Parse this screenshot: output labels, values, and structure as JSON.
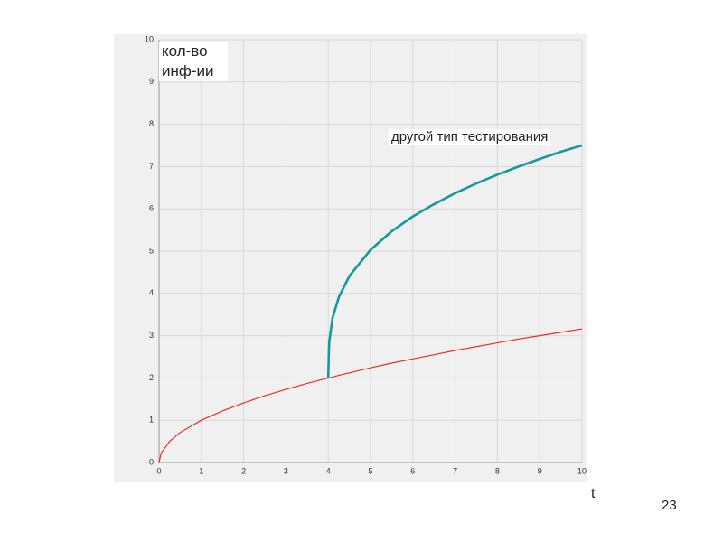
{
  "chart_data": {
    "type": "line",
    "ylabel": "кол-во инф-ии",
    "xlabel": "t",
    "annotation": "другой тип тестирования",
    "x": [
      0,
      0.05,
      0.25,
      0.5,
      1,
      1.5,
      2,
      2.5,
      3,
      3.5,
      4,
      4.02,
      4.1,
      4.25,
      4.5,
      5,
      5.5,
      6,
      6.5,
      7,
      7.5,
      8,
      8.5,
      9,
      9.5,
      10
    ],
    "series": [
      {
        "color": "#e8302a",
        "width": 1.2,
        "values": [
          0,
          0.22,
          0.5,
          0.71,
          1,
          1.22,
          1.41,
          1.58,
          1.73,
          1.87,
          2,
          2.0,
          2.02,
          2.06,
          2.12,
          2.24,
          2.35,
          2.45,
          2.55,
          2.65,
          2.74,
          2.83,
          2.92,
          3,
          3.08,
          3.16
        ]
      },
      {
        "color": "#16999a",
        "width": 2.6,
        "values": [
          null,
          null,
          null,
          null,
          null,
          null,
          null,
          null,
          null,
          null,
          2,
          2.82,
          3.41,
          3.91,
          4.41,
          5.03,
          5.47,
          5.82,
          6.11,
          6.37,
          6.6,
          6.81,
          7.0,
          7.18,
          7.35,
          7.5
        ]
      }
    ],
    "xlim": [
      0,
      10
    ],
    "ylim": [
      0,
      10
    ],
    "xticks": [
      0,
      1,
      2,
      3,
      4,
      5,
      6,
      7,
      8,
      9,
      10
    ],
    "yticks": [
      0,
      1,
      2,
      3,
      4,
      5,
      6,
      7,
      8,
      9,
      10
    ],
    "grid": true
  },
  "page_number": "23"
}
